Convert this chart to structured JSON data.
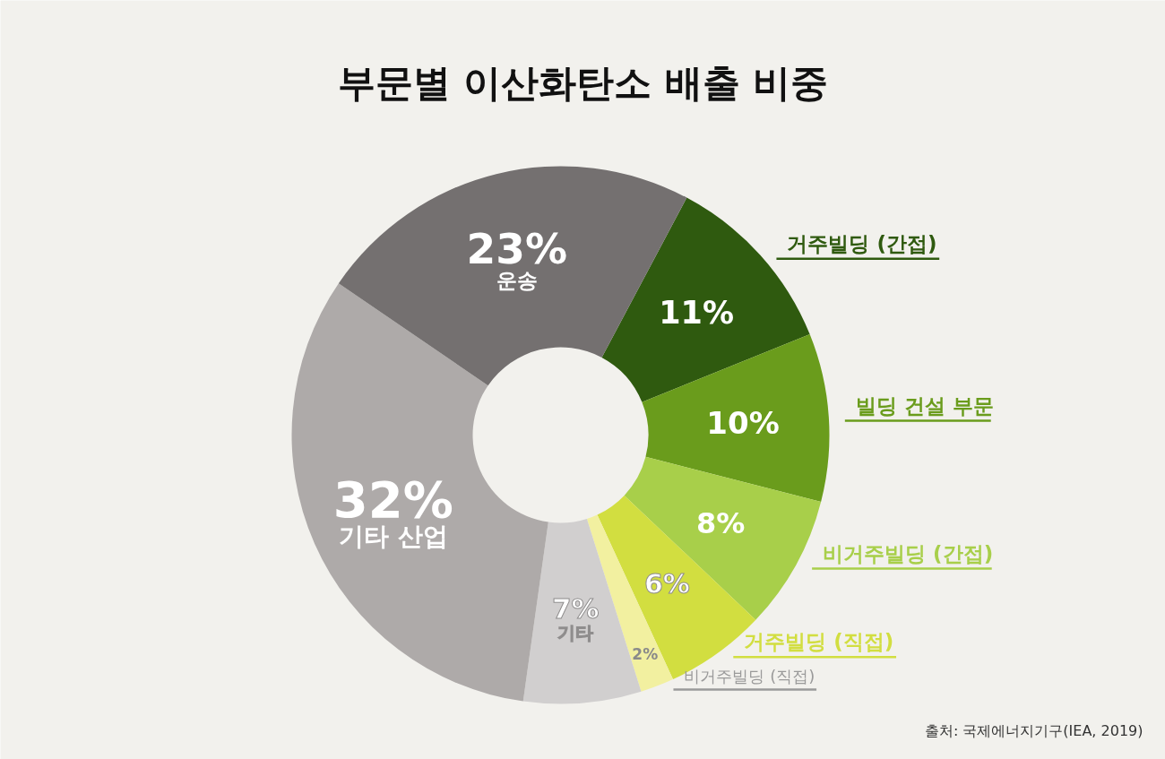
{
  "chart_data": {
    "type": "donut",
    "title": "부문별 이산화탄소 배출 비중",
    "categories": [
      "거주빌딩 (간접)",
      "빌딩 건설 부문",
      "비거주빌딩 (간접)",
      "거주빌딩 (직접)",
      "비거주빌딩 (직접)",
      "기타",
      "기타 산업",
      "운송"
    ],
    "values": [
      11,
      10,
      8,
      6,
      2,
      7,
      32,
      23
    ],
    "colors": [
      "#2f5a0f",
      "#6a9c1c",
      "#a8cf4a",
      "#d2de40",
      "#f2f0a0",
      "#d1cfcf",
      "#aeaaa9",
      "#747070"
    ],
    "value_labels": [
      "11%",
      "10%",
      "8%",
      "6%",
      "2%",
      "7%",
      "32%",
      "23%"
    ],
    "annotations": [
      "출처: 국제에너지기구(IEA, 2019)"
    ]
  }
}
